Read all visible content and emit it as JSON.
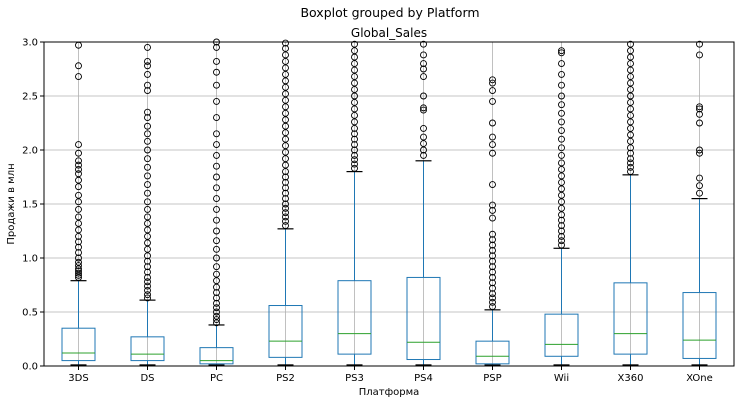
{
  "suptitle": "Boxplot grouped by Platform",
  "chart_data": {
    "type": "boxplot",
    "title": "Global_Sales",
    "xlabel": "Платформа",
    "ylabel": "Продажи в млн",
    "ylim": [
      0,
      3.0
    ],
    "yticks": [
      "0.0",
      "0.5",
      "1.0",
      "1.5",
      "2.0",
      "2.5",
      "3.0"
    ],
    "grid": true,
    "colors": {
      "box": "#1f77b4",
      "median": "#2ca02c",
      "grid": "#b0b0b0",
      "flier": "#000000"
    },
    "categories": [
      "3DS",
      "DS",
      "PC",
      "PS2",
      "PS3",
      "PS4",
      "PSP",
      "Wii",
      "X360",
      "XOne"
    ],
    "boxes": [
      {
        "q1": 0.05,
        "median": 0.12,
        "q3": 0.35,
        "whisker_low": 0.01,
        "whisker_high": 0.79,
        "fliers": [
          0.82,
          0.84,
          0.86,
          0.88,
          0.9,
          0.93,
          0.96,
          1.0,
          1.05,
          1.1,
          1.15,
          1.2,
          1.26,
          1.32,
          1.38,
          1.45,
          1.52,
          1.58,
          1.66,
          1.72,
          1.78,
          1.82,
          1.86,
          1.9,
          1.97,
          2.05,
          2.68,
          2.78,
          2.97
        ]
      },
      {
        "q1": 0.05,
        "median": 0.11,
        "q3": 0.27,
        "whisker_low": 0.01,
        "whisker_high": 0.61,
        "fliers": [
          0.63,
          0.66,
          0.7,
          0.74,
          0.78,
          0.82,
          0.87,
          0.92,
          0.97,
          1.02,
          1.08,
          1.14,
          1.2,
          1.26,
          1.32,
          1.38,
          1.45,
          1.52,
          1.6,
          1.68,
          1.76,
          1.84,
          1.92,
          2.0,
          2.08,
          2.15,
          2.22,
          2.3,
          2.35,
          2.55,
          2.6,
          2.7,
          2.78,
          2.82,
          2.95
        ]
      },
      {
        "q1": 0.02,
        "median": 0.05,
        "q3": 0.17,
        "whisker_low": 0.01,
        "whisker_high": 0.38,
        "fliers": [
          0.4,
          0.43,
          0.46,
          0.5,
          0.54,
          0.58,
          0.63,
          0.68,
          0.73,
          0.79,
          0.85,
          0.92,
          1.0,
          1.08,
          1.16,
          1.25,
          1.35,
          1.45,
          1.55,
          1.65,
          1.75,
          1.85,
          1.95,
          2.05,
          2.15,
          2.3,
          2.45,
          2.6,
          2.72,
          2.82,
          2.95,
          3.0
        ]
      },
      {
        "q1": 0.08,
        "median": 0.23,
        "q3": 0.56,
        "whisker_low": 0.01,
        "whisker_high": 1.27,
        "fliers": [
          1.3,
          1.34,
          1.38,
          1.42,
          1.46,
          1.5,
          1.55,
          1.6,
          1.65,
          1.7,
          1.75,
          1.8,
          1.86,
          1.92,
          1.98,
          2.04,
          2.1,
          2.16,
          2.22,
          2.28,
          2.34,
          2.4,
          2.46,
          2.52,
          2.58,
          2.64,
          2.7,
          2.76,
          2.82,
          2.88,
          2.94,
          2.99
        ]
      },
      {
        "q1": 0.11,
        "median": 0.3,
        "q3": 0.79,
        "whisker_low": 0.01,
        "whisker_high": 1.8,
        "fliers": [
          1.83,
          1.87,
          1.91,
          1.95,
          2.0,
          2.05,
          2.1,
          2.15,
          2.2,
          2.26,
          2.32,
          2.38,
          2.44,
          2.5,
          2.56,
          2.62,
          2.68,
          2.74,
          2.8,
          2.86,
          2.92,
          2.98
        ]
      },
      {
        "q1": 0.06,
        "median": 0.22,
        "q3": 0.82,
        "whisker_low": 0.01,
        "whisker_high": 1.9,
        "fliers": [
          1.95,
          2.0,
          2.06,
          2.12,
          2.2,
          2.37,
          2.39,
          2.5,
          2.68,
          2.75,
          2.8,
          2.88,
          2.98
        ]
      },
      {
        "q1": 0.02,
        "median": 0.09,
        "q3": 0.23,
        "whisker_low": 0.01,
        "whisker_high": 0.52,
        "fliers": [
          0.55,
          0.59,
          0.63,
          0.67,
          0.72,
          0.77,
          0.82,
          0.87,
          0.92,
          0.97,
          1.02,
          1.07,
          1.12,
          1.17,
          1.22,
          1.37,
          1.44,
          1.49,
          1.68,
          1.97,
          2.05,
          2.12,
          2.25,
          2.45,
          2.55,
          2.62,
          2.65
        ]
      },
      {
        "q1": 0.09,
        "median": 0.2,
        "q3": 0.48,
        "whisker_low": 0.01,
        "whisker_high": 1.09,
        "fliers": [
          1.12,
          1.16,
          1.2,
          1.25,
          1.3,
          1.35,
          1.4,
          1.46,
          1.52,
          1.58,
          1.64,
          1.7,
          1.76,
          1.82,
          1.88,
          1.95,
          2.02,
          2.1,
          2.18,
          2.26,
          2.34,
          2.42,
          2.5,
          2.6,
          2.7,
          2.8,
          2.9,
          2.92
        ]
      },
      {
        "q1": 0.11,
        "median": 0.3,
        "q3": 0.77,
        "whisker_low": 0.01,
        "whisker_high": 1.77,
        "fliers": [
          1.8,
          1.84,
          1.88,
          1.92,
          1.97,
          2.02,
          2.08,
          2.14,
          2.2,
          2.26,
          2.32,
          2.38,
          2.44,
          2.5,
          2.56,
          2.62,
          2.68,
          2.74,
          2.8,
          2.86,
          2.92,
          2.98
        ]
      },
      {
        "q1": 0.07,
        "median": 0.24,
        "q3": 0.68,
        "whisker_low": 0.01,
        "whisker_high": 1.55,
        "fliers": [
          1.6,
          1.67,
          1.74,
          1.97,
          2.0,
          2.25,
          2.33,
          2.38,
          2.4,
          2.88,
          2.98
        ]
      }
    ]
  }
}
